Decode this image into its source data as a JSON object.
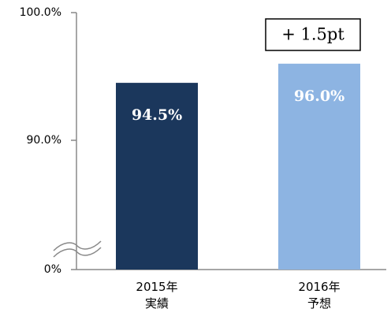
{
  "chart_data": {
    "type": "bar",
    "categories": [
      "2015年\n実績",
      "2016年\n予想"
    ],
    "values": [
      94.5,
      96.0
    ],
    "value_labels": [
      "94.5%",
      "96.0%"
    ],
    "colors": [
      "#1b375c",
      "#8db4e2"
    ],
    "ylim": [
      0,
      100
    ],
    "yticks": [
      {
        "value": 0,
        "label": "0%"
      },
      {
        "value": 90,
        "label": "90.0%"
      },
      {
        "value": 100,
        "label": "100.0%"
      }
    ],
    "axis_break": [
      0,
      90
    ],
    "annotation": "+ 1.5pt",
    "grid": false
  }
}
